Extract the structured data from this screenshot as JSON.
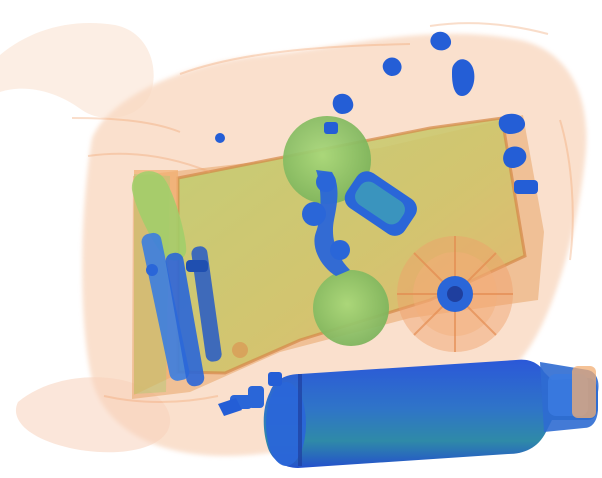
{
  "scan": {
    "kind": "x-ray baggage scan",
    "background_color": "#ffffff",
    "palette": {
      "organic_orange": "#f2a36a",
      "organic_light": "#f8d2b3",
      "mixed_green": "#9fcf6a",
      "mixed_yellow": "#d9c55e",
      "metal_blue": "#2a66d8",
      "metal_dark_blue": "#1f3f9e",
      "metal_cyan": "#3fa0b8"
    }
  },
  "objects": [
    {
      "name": "bag-shell",
      "material": "organic",
      "color": "#f4b27f"
    },
    {
      "name": "inner-tray",
      "material": "mixed",
      "color": "#b9c96b"
    },
    {
      "name": "thermos-bottle",
      "material": "metal",
      "color": "#2a66d8"
    },
    {
      "name": "left-device",
      "material": "metal",
      "color": "#3c74d8"
    },
    {
      "name": "round-container-top",
      "material": "mixed",
      "color": "#8fc566"
    },
    {
      "name": "round-container-bottom",
      "material": "mixed",
      "color": "#8fc566"
    },
    {
      "name": "fan-disk",
      "material": "organic",
      "color": "#f0a06a"
    },
    {
      "name": "small-metal-parts",
      "material": "metal",
      "color": "#245ed6"
    }
  ]
}
